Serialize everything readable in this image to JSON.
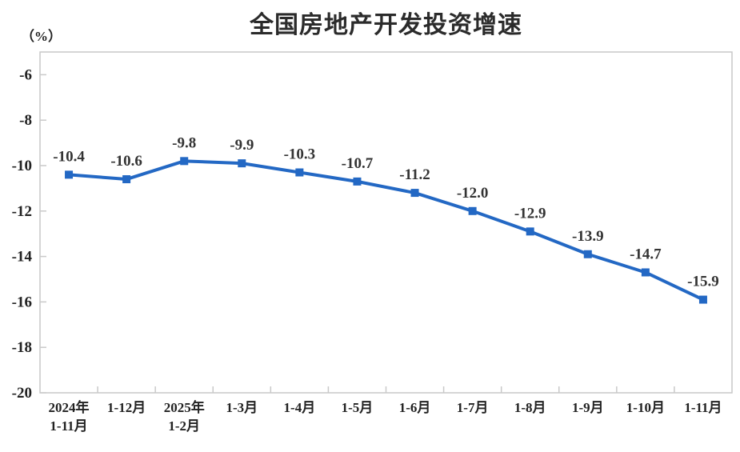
{
  "chart_data": {
    "type": "line",
    "title": "全国房地产开发投资增速",
    "unit_label": "（%）",
    "categories": [
      "2024年\n1-11月",
      "1-12月",
      "2025年\n1-2月",
      "1-3月",
      "1-4月",
      "1-5月",
      "1-6月",
      "1-7月",
      "1-8月",
      "1-9月",
      "1-10月",
      "1-11月"
    ],
    "values": [
      -10.4,
      -10.6,
      -9.8,
      -9.9,
      -10.3,
      -10.7,
      -11.2,
      -12.0,
      -12.9,
      -13.9,
      -14.7,
      -15.9
    ],
    "point_labels": [
      "-10.4",
      "-10.6",
      "-9.8",
      "-9.9",
      "-10.3",
      "-10.7",
      "-11.2",
      "-12.0",
      "-12.9",
      "-13.9",
      "-14.7",
      "-15.9"
    ],
    "y_ticks": [
      "-6",
      "-8",
      "-10",
      "-12",
      "-14",
      "-16",
      "-18",
      "-20"
    ],
    "y_tick_values": [
      -6,
      -8,
      -10,
      -12,
      -14,
      -16,
      -18,
      -20
    ],
    "y_domain": [
      -20,
      -5
    ],
    "series_name": "全国房地产开发投资增速",
    "line_color": "#2368c4",
    "marker_color": "#2368c4",
    "label_color": "#333333",
    "axis_color": "#c9c9c9",
    "tick_text_color": "#222222",
    "grid": false,
    "legend_position": "none"
  }
}
